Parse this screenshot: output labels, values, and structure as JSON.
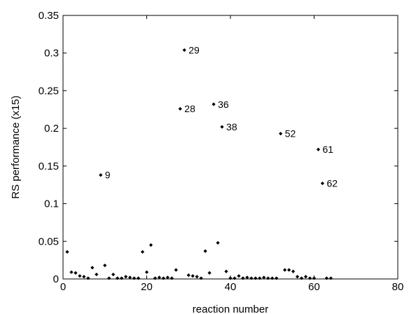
{
  "chart_data": {
    "type": "scatter",
    "title": "",
    "xlabel": "reaction number",
    "ylabel": "RS performance (x15)",
    "xlim": [
      0,
      80
    ],
    "ylim": [
      0,
      0.35
    ],
    "xticks": [
      "0",
      "20",
      "40",
      "60",
      "80"
    ],
    "yticks": [
      "0",
      "0.05",
      "0.1",
      "0.15",
      "0.2",
      "0.25",
      "0.3",
      "0.35"
    ],
    "grid": false,
    "marker_color": "#000000",
    "points": [
      [
        1,
        0.036
      ],
      [
        2,
        0.009
      ],
      [
        3,
        0.008
      ],
      [
        4,
        0.004
      ],
      [
        5,
        0.003
      ],
      [
        6,
        0.001
      ],
      [
        7,
        0.015
      ],
      [
        8,
        0.006
      ],
      [
        9,
        0.138
      ],
      [
        10,
        0.018
      ],
      [
        11,
        0.001
      ],
      [
        12,
        0.006
      ],
      [
        13,
        0.001
      ],
      [
        14,
        0.001
      ],
      [
        15,
        0.003
      ],
      [
        16,
        0.002
      ],
      [
        17,
        0.001
      ],
      [
        18,
        0.001
      ],
      [
        19,
        0.036
      ],
      [
        20,
        0.009
      ],
      [
        21,
        0.045
      ],
      [
        22,
        0.001
      ],
      [
        23,
        0.002
      ],
      [
        24,
        0.001
      ],
      [
        25,
        0.002
      ],
      [
        26,
        0.001
      ],
      [
        27,
        0.012
      ],
      [
        28,
        0.226
      ],
      [
        29,
        0.304
      ],
      [
        30,
        0.005
      ],
      [
        31,
        0.004
      ],
      [
        32,
        0.003
      ],
      [
        33,
        0.001
      ],
      [
        34,
        0.037
      ],
      [
        35,
        0.008
      ],
      [
        36,
        0.232
      ],
      [
        37,
        0.048
      ],
      [
        38,
        0.202
      ],
      [
        39,
        0.01
      ],
      [
        40,
        0.001
      ],
      [
        41,
        0.001
      ],
      [
        42,
        0.004
      ],
      [
        43,
        0.001
      ],
      [
        44,
        0.002
      ],
      [
        45,
        0.001
      ],
      [
        46,
        0.001
      ],
      [
        47,
        0.001
      ],
      [
        48,
        0.002
      ],
      [
        49,
        0.001
      ],
      [
        50,
        0.001
      ],
      [
        51,
        0.001
      ],
      [
        52,
        0.193
      ],
      [
        53,
        0.012
      ],
      [
        54,
        0.012
      ],
      [
        55,
        0.01
      ],
      [
        56,
        0.003
      ],
      [
        57,
        0.001
      ],
      [
        58,
        0.003
      ],
      [
        59,
        0.001
      ],
      [
        60,
        0.001
      ],
      [
        61,
        0.172
      ],
      [
        62,
        0.127
      ],
      [
        63,
        0.001
      ],
      [
        64,
        0.001
      ]
    ],
    "annotations": [
      {
        "label": "9",
        "x": 9,
        "y": 0.138
      },
      {
        "label": "28",
        "x": 28,
        "y": 0.226
      },
      {
        "label": "29",
        "x": 29,
        "y": 0.304
      },
      {
        "label": "36",
        "x": 36,
        "y": 0.232
      },
      {
        "label": "38",
        "x": 38,
        "y": 0.202
      },
      {
        "label": "52",
        "x": 52,
        "y": 0.193
      },
      {
        "label": "61",
        "x": 61,
        "y": 0.172
      },
      {
        "label": "62",
        "x": 62,
        "y": 0.127
      }
    ]
  }
}
